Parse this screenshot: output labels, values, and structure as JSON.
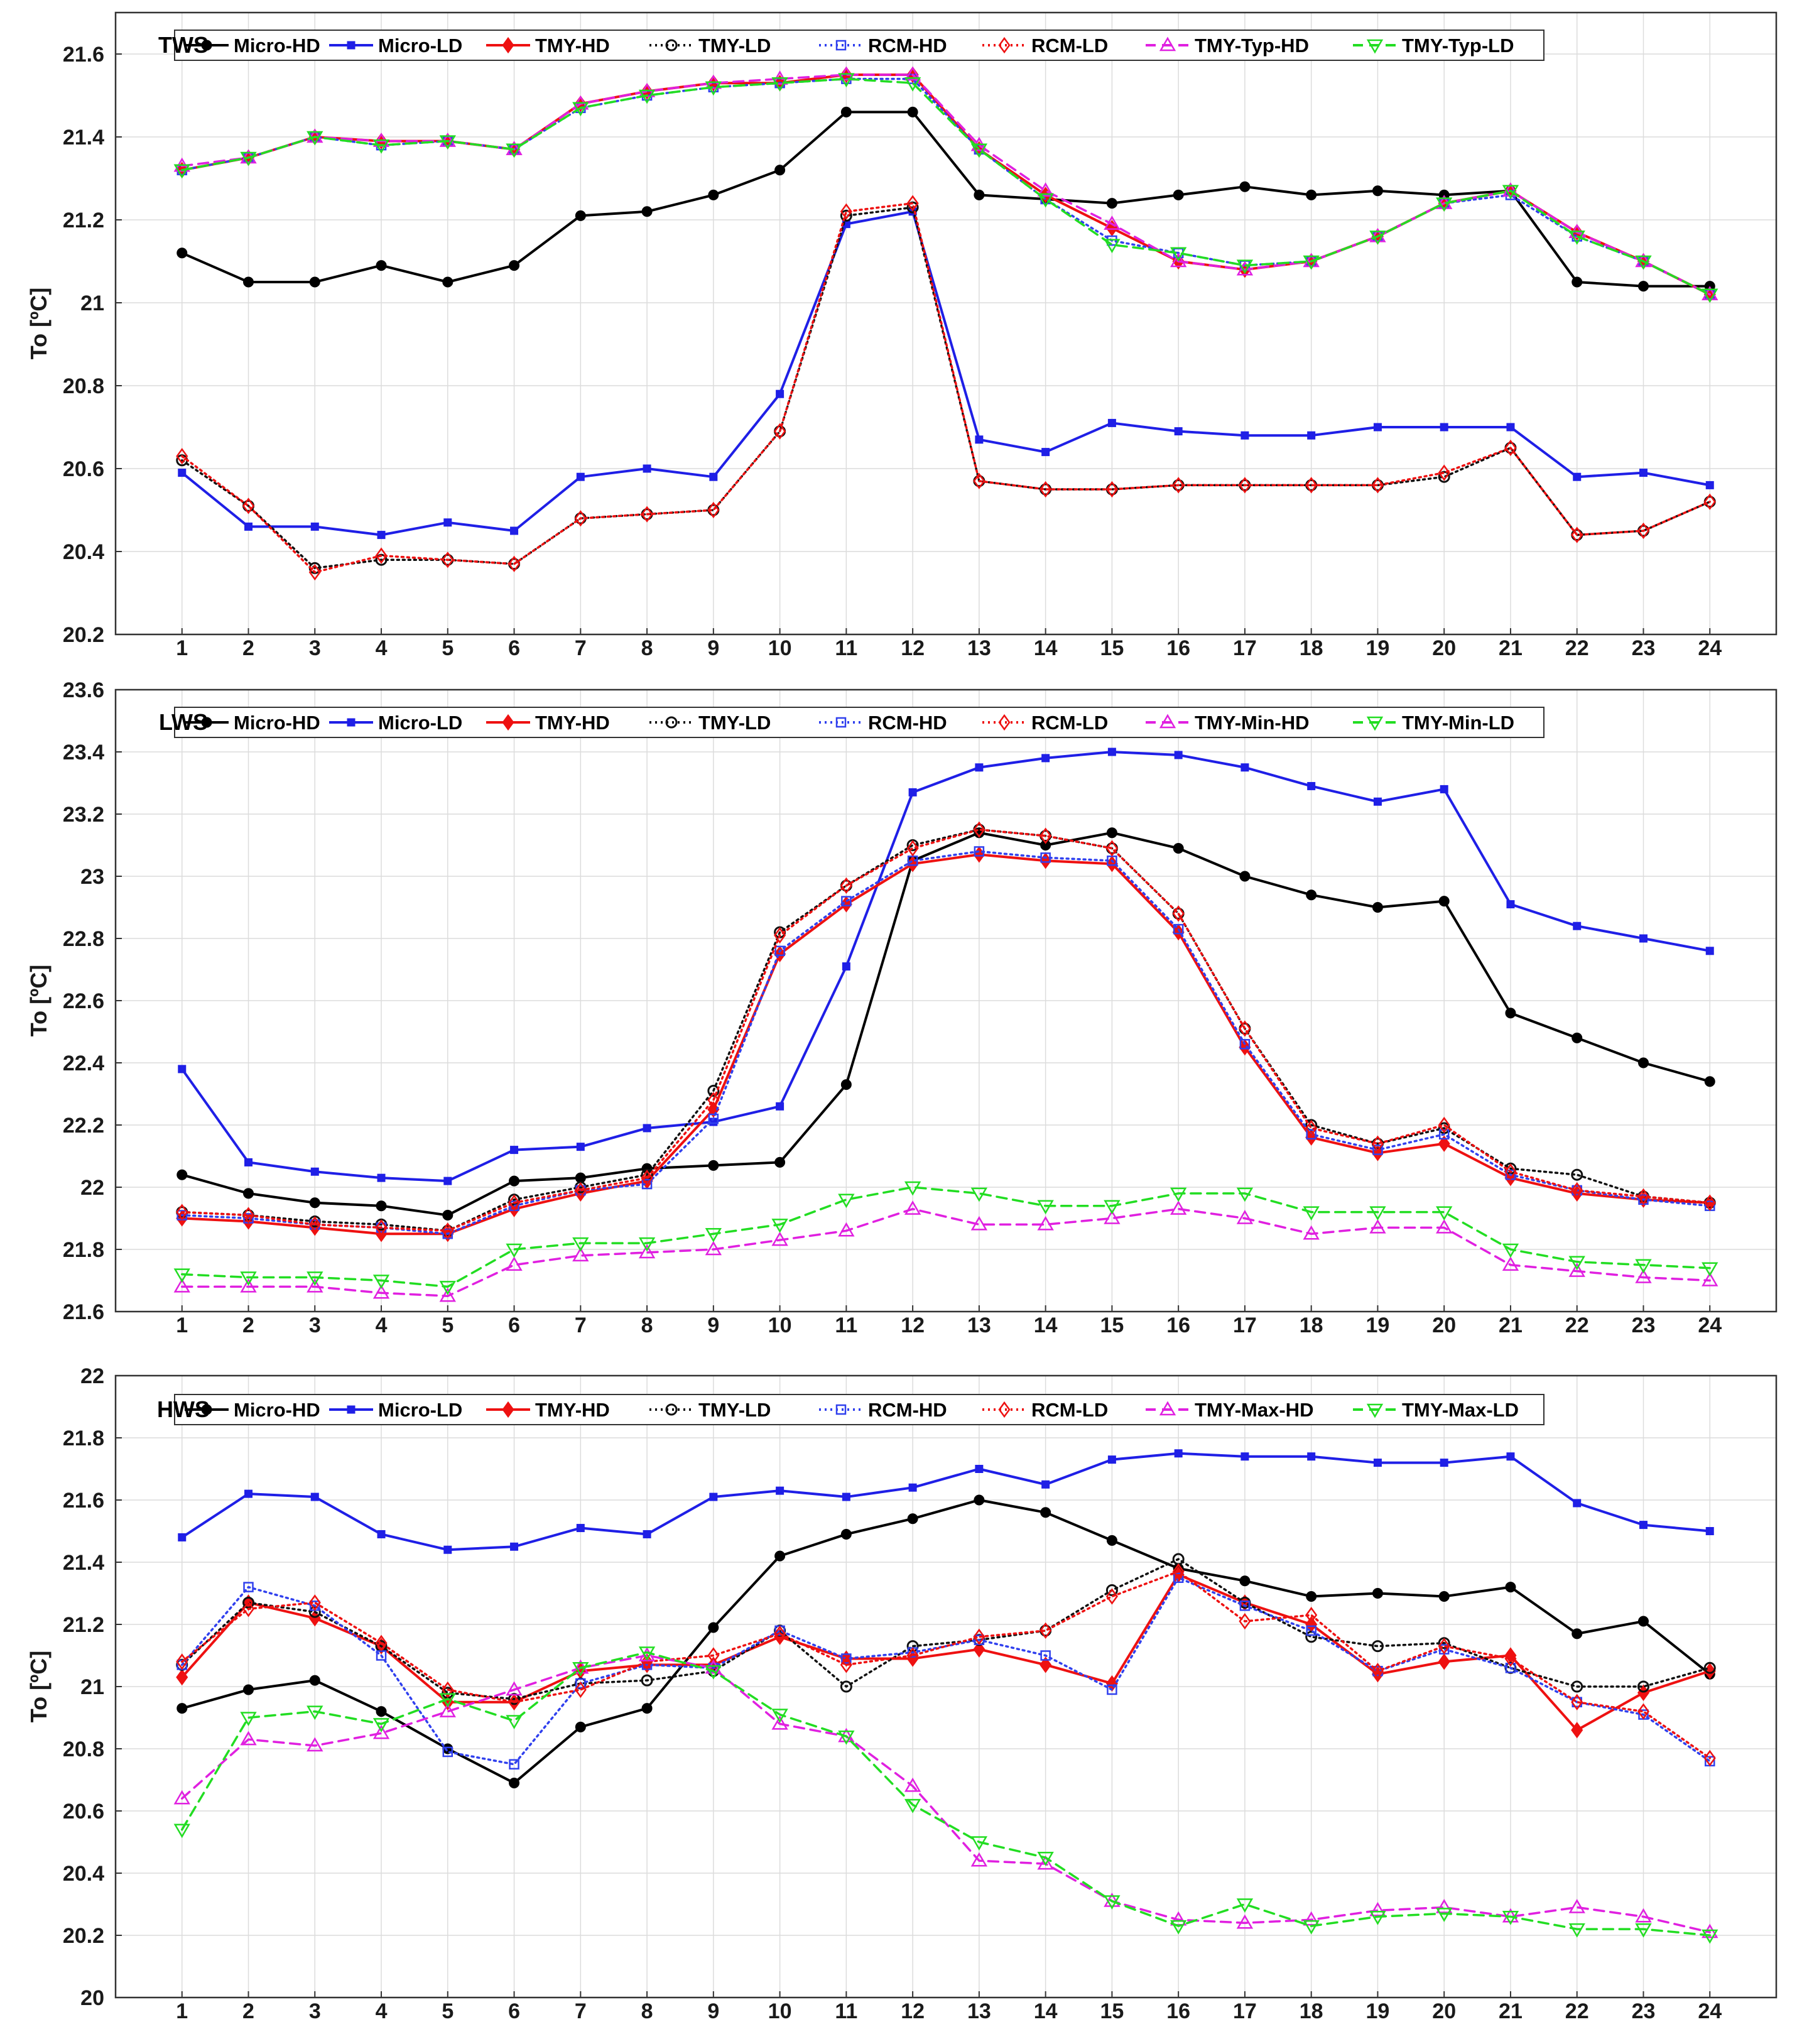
{
  "chart_data": [
    {
      "type": "line",
      "title": "TWS",
      "xlabel": "",
      "ylabel": "To [ºC]",
      "ylim": [
        20.2,
        21.7
      ],
      "yticks": [
        20.2,
        20.4,
        20.6,
        20.8,
        21,
        21.2,
        21.4,
        21.6
      ],
      "ytick_labels": [
        "20.2",
        "20.4",
        "20.6",
        "20.8",
        "21",
        "21.2",
        "21.4",
        "21.6"
      ],
      "categories": [
        1,
        2,
        3,
        4,
        5,
        6,
        7,
        8,
        9,
        10,
        11,
        12,
        13,
        14,
        15,
        16,
        17,
        18,
        19,
        20,
        21,
        22,
        23,
        24
      ],
      "legend_position": "top",
      "grid": true,
      "series": [
        {
          "name": "Micro-HD",
          "color": "#000000",
          "style": "solid",
          "marker": "dot",
          "values": [
            21.12,
            21.05,
            21.05,
            21.09,
            21.05,
            21.09,
            21.21,
            21.22,
            21.26,
            21.32,
            21.46,
            21.46,
            21.26,
            21.25,
            21.24,
            21.26,
            21.28,
            21.26,
            21.27,
            21.26,
            21.27,
            21.05,
            21.04,
            21.04
          ]
        },
        {
          "name": "Micro-LD",
          "color": "#1f1fe6",
          "style": "solid",
          "marker": "square",
          "values": [
            20.59,
            20.46,
            20.46,
            20.44,
            20.47,
            20.45,
            20.58,
            20.6,
            20.58,
            20.78,
            21.19,
            21.22,
            20.67,
            20.64,
            20.71,
            20.69,
            20.68,
            20.68,
            20.7,
            20.7,
            20.7,
            20.58,
            20.59,
            20.56
          ]
        },
        {
          "name": "TMY-HD",
          "color": "#ee1111",
          "style": "solid",
          "marker": "diamond",
          "values": [
            21.32,
            21.35,
            21.4,
            21.39,
            21.39,
            21.37,
            21.48,
            21.51,
            21.53,
            21.53,
            21.55,
            21.55,
            21.37,
            21.26,
            21.18,
            21.1,
            21.08,
            21.1,
            21.16,
            21.24,
            21.27,
            21.17,
            21.1,
            21.02
          ]
        },
        {
          "name": "TMY-LD",
          "color": "#111111",
          "style": "dotted",
          "marker": "circle",
          "values": [
            20.62,
            20.51,
            20.36,
            20.38,
            20.38,
            20.37,
            20.48,
            20.49,
            20.5,
            20.69,
            21.21,
            21.23,
            20.57,
            20.55,
            20.55,
            20.56,
            20.56,
            20.56,
            20.56,
            20.58,
            20.65,
            20.44,
            20.45,
            20.52
          ]
        },
        {
          "name": "RCM-HD",
          "color": "#3040ee",
          "style": "dotted",
          "marker": "square",
          "values": [
            21.32,
            21.35,
            21.4,
            21.38,
            21.39,
            21.37,
            21.47,
            21.5,
            21.52,
            21.53,
            21.54,
            21.54,
            21.37,
            21.25,
            21.15,
            21.12,
            21.09,
            21.1,
            21.16,
            21.24,
            21.26,
            21.16,
            21.1,
            21.02
          ]
        },
        {
          "name": "RCM-LD",
          "color": "#ee1111",
          "style": "dotted",
          "marker": "diamond",
          "values": [
            20.63,
            20.51,
            20.35,
            20.39,
            20.38,
            20.37,
            20.48,
            20.49,
            20.5,
            20.69,
            21.22,
            21.24,
            20.57,
            20.55,
            20.55,
            20.56,
            20.56,
            20.56,
            20.56,
            20.59,
            20.65,
            20.44,
            20.45,
            20.52
          ]
        },
        {
          "name": "TMY-Typ-HD",
          "color": "#e020e0",
          "style": "dashed",
          "marker": "triangle-up",
          "values": [
            21.33,
            21.35,
            21.4,
            21.39,
            21.39,
            21.37,
            21.48,
            21.51,
            21.53,
            21.54,
            21.55,
            21.55,
            21.38,
            21.27,
            21.19,
            21.1,
            21.08,
            21.1,
            21.16,
            21.24,
            21.27,
            21.17,
            21.1,
            21.02
          ]
        },
        {
          "name": "TMY-Typ-LD",
          "color": "#22dd22",
          "style": "dashed",
          "marker": "triangle-down",
          "values": [
            21.32,
            21.35,
            21.4,
            21.38,
            21.39,
            21.37,
            21.47,
            21.5,
            21.52,
            21.53,
            21.54,
            21.53,
            21.37,
            21.25,
            21.14,
            21.12,
            21.09,
            21.1,
            21.16,
            21.24,
            21.27,
            21.16,
            21.1,
            21.02
          ]
        }
      ]
    },
    {
      "type": "line",
      "title": "LWS",
      "xlabel": "",
      "ylabel": "To [ºC]",
      "ylim": [
        21.6,
        23.6
      ],
      "yticks": [
        21.6,
        21.8,
        22,
        22.2,
        22.4,
        22.6,
        22.8,
        23,
        23.2,
        23.4,
        23.6
      ],
      "ytick_labels": [
        "21.6",
        "21.8",
        "22",
        "22.2",
        "22.4",
        "22.6",
        "22.8",
        "23",
        "23.2",
        "23.4",
        "23.6"
      ],
      "categories": [
        1,
        2,
        3,
        4,
        5,
        6,
        7,
        8,
        9,
        10,
        11,
        12,
        13,
        14,
        15,
        16,
        17,
        18,
        19,
        20,
        21,
        22,
        23,
        24
      ],
      "legend_position": "top",
      "grid": true,
      "series": [
        {
          "name": "Micro-HD",
          "color": "#000000",
          "style": "solid",
          "marker": "dot",
          "values": [
            22.04,
            21.98,
            21.95,
            21.94,
            21.91,
            22.02,
            22.03,
            22.06,
            22.07,
            22.08,
            22.33,
            23.05,
            23.14,
            23.1,
            23.14,
            23.09,
            23.0,
            22.94,
            22.9,
            22.92,
            22.56,
            22.48,
            22.4,
            22.34
          ]
        },
        {
          "name": "Micro-LD",
          "color": "#1f1fe6",
          "style": "solid",
          "marker": "square",
          "values": [
            22.38,
            22.08,
            22.05,
            22.03,
            22.02,
            22.12,
            22.13,
            22.19,
            22.21,
            22.26,
            22.71,
            23.27,
            23.35,
            23.38,
            23.4,
            23.39,
            23.35,
            23.29,
            23.24,
            23.28,
            22.91,
            22.84,
            22.8,
            22.76
          ]
        },
        {
          "name": "TMY-HD",
          "color": "#ee1111",
          "style": "solid",
          "marker": "diamond",
          "values": [
            21.9,
            21.89,
            21.87,
            21.85,
            21.85,
            21.93,
            21.98,
            22.02,
            22.25,
            22.75,
            22.91,
            23.04,
            23.07,
            23.05,
            23.04,
            22.82,
            22.45,
            22.16,
            22.11,
            22.14,
            22.03,
            21.98,
            21.96,
            21.95
          ]
        },
        {
          "name": "TMY-LD",
          "color": "#111111",
          "style": "dotted",
          "marker": "circle",
          "values": [
            21.92,
            21.91,
            21.89,
            21.88,
            21.86,
            21.96,
            22.0,
            22.04,
            22.31,
            22.82,
            22.97,
            23.1,
            23.15,
            23.13,
            23.09,
            22.88,
            22.51,
            22.2,
            22.14,
            22.19,
            22.06,
            22.04,
            21.97,
            21.95
          ]
        },
        {
          "name": "RCM-HD",
          "color": "#3040ee",
          "style": "dotted",
          "marker": "square",
          "values": [
            21.91,
            21.9,
            21.88,
            21.87,
            21.85,
            21.94,
            21.99,
            22.01,
            22.22,
            22.76,
            22.92,
            23.05,
            23.08,
            23.06,
            23.05,
            22.83,
            22.46,
            22.17,
            22.12,
            22.17,
            22.04,
            21.99,
            21.96,
            21.94
          ]
        },
        {
          "name": "RCM-LD",
          "color": "#ee1111",
          "style": "dotted",
          "marker": "diamond",
          "values": [
            21.92,
            21.91,
            21.88,
            21.87,
            21.86,
            21.95,
            21.99,
            22.03,
            22.28,
            22.81,
            22.97,
            23.09,
            23.15,
            23.13,
            23.09,
            22.88,
            22.51,
            22.19,
            22.14,
            22.2,
            22.05,
            21.99,
            21.97,
            21.95
          ]
        },
        {
          "name": "TMY-Min-HD",
          "color": "#e020e0",
          "style": "dashed",
          "marker": "triangle-up",
          "values": [
            21.68,
            21.68,
            21.68,
            21.66,
            21.65,
            21.75,
            21.78,
            21.79,
            21.8,
            21.83,
            21.86,
            21.93,
            21.88,
            21.88,
            21.9,
            21.93,
            21.9,
            21.85,
            21.87,
            21.87,
            21.75,
            21.73,
            21.71,
            21.7
          ]
        },
        {
          "name": "TMY-Min-LD",
          "color": "#22dd22",
          "style": "dashed",
          "marker": "triangle-down",
          "values": [
            21.72,
            21.71,
            21.71,
            21.7,
            21.68,
            21.8,
            21.82,
            21.82,
            21.85,
            21.88,
            21.96,
            22.0,
            21.98,
            21.94,
            21.94,
            21.98,
            21.98,
            21.92,
            21.92,
            21.92,
            21.8,
            21.76,
            21.75,
            21.74
          ]
        }
      ]
    },
    {
      "type": "line",
      "title": "HWS",
      "xlabel": "",
      "ylabel": "To [ºC]",
      "ylim": [
        20,
        22
      ],
      "yticks": [
        20,
        20.2,
        20.4,
        20.6,
        20.8,
        21,
        21.2,
        21.4,
        21.6,
        21.8,
        22
      ],
      "ytick_labels": [
        "20",
        "20.2",
        "20.4",
        "20.6",
        "20.8",
        "21",
        "21.2",
        "21.4",
        "21.6",
        "21.8",
        "22"
      ],
      "categories": [
        1,
        2,
        3,
        4,
        5,
        6,
        7,
        8,
        9,
        10,
        11,
        12,
        13,
        14,
        15,
        16,
        17,
        18,
        19,
        20,
        21,
        22,
        23,
        24
      ],
      "legend_position": "top",
      "grid": true,
      "series": [
        {
          "name": "Micro-HD",
          "color": "#000000",
          "style": "solid",
          "marker": "dot",
          "values": [
            20.93,
            20.99,
            21.02,
            20.92,
            20.8,
            20.69,
            20.87,
            20.93,
            21.19,
            21.42,
            21.49,
            21.54,
            21.6,
            21.56,
            21.47,
            21.38,
            21.34,
            21.29,
            21.3,
            21.29,
            21.32,
            21.17,
            21.21,
            21.04
          ]
        },
        {
          "name": "Micro-LD",
          "color": "#1f1fe6",
          "style": "solid",
          "marker": "square",
          "values": [
            21.48,
            21.62,
            21.61,
            21.49,
            21.44,
            21.45,
            21.51,
            21.49,
            21.61,
            21.63,
            21.61,
            21.64,
            21.7,
            21.65,
            21.73,
            21.75,
            21.74,
            21.74,
            21.72,
            21.72,
            21.74,
            21.59,
            21.52,
            21.5
          ]
        },
        {
          "name": "TMY-HD",
          "color": "#ee1111",
          "style": "solid",
          "marker": "diamond",
          "values": [
            21.03,
            21.27,
            21.22,
            21.13,
            20.95,
            20.95,
            21.05,
            21.07,
            21.07,
            21.16,
            21.09,
            21.09,
            21.12,
            21.07,
            21.01,
            21.36,
            21.27,
            21.2,
            21.04,
            21.08,
            21.1,
            20.86,
            20.98,
            21.05
          ]
        },
        {
          "name": "TMY-LD",
          "color": "#111111",
          "style": "dotted",
          "marker": "circle",
          "values": [
            21.07,
            21.27,
            21.24,
            21.13,
            20.98,
            20.96,
            21.01,
            21.02,
            21.05,
            21.18,
            21.0,
            21.13,
            21.15,
            21.18,
            21.31,
            21.41,
            21.27,
            21.16,
            21.13,
            21.14,
            21.06,
            21.0,
            21.0,
            21.06
          ]
        },
        {
          "name": "RCM-HD",
          "color": "#3040ee",
          "style": "dotted",
          "marker": "square",
          "values": [
            21.07,
            21.32,
            21.26,
            21.1,
            20.79,
            20.75,
            21.01,
            21.07,
            21.06,
            21.18,
            21.09,
            21.11,
            21.15,
            21.1,
            20.99,
            21.35,
            21.26,
            21.18,
            21.05,
            21.12,
            21.06,
            20.95,
            20.91,
            20.76
          ]
        },
        {
          "name": "RCM-LD",
          "color": "#ee1111",
          "style": "dotted",
          "marker": "diamond",
          "values": [
            21.08,
            21.25,
            21.27,
            21.14,
            20.99,
            20.95,
            20.99,
            21.08,
            21.1,
            21.17,
            21.07,
            21.1,
            21.16,
            21.18,
            21.29,
            21.37,
            21.21,
            21.23,
            21.05,
            21.13,
            21.09,
            20.95,
            20.92,
            20.77
          ]
        },
        {
          "name": "TMY-Max-HD",
          "color": "#e020e0",
          "style": "dashed",
          "marker": "triangle-up",
          "values": [
            20.64,
            20.83,
            20.81,
            20.85,
            20.92,
            20.99,
            21.06,
            21.1,
            21.06,
            20.88,
            20.84,
            20.68,
            20.44,
            20.43,
            20.31,
            20.25,
            20.24,
            20.25,
            20.28,
            20.29,
            20.26,
            20.29,
            20.26,
            20.21
          ]
        },
        {
          "name": "TMY-Max-LD",
          "color": "#22dd22",
          "style": "dashed",
          "marker": "triangle-down",
          "values": [
            20.54,
            20.9,
            20.92,
            20.88,
            20.96,
            20.89,
            21.06,
            21.11,
            21.05,
            20.91,
            20.84,
            20.62,
            20.5,
            20.45,
            20.31,
            20.23,
            20.3,
            20.23,
            20.26,
            20.27,
            20.26,
            20.22,
            20.22,
            20.2
          ]
        }
      ]
    }
  ]
}
